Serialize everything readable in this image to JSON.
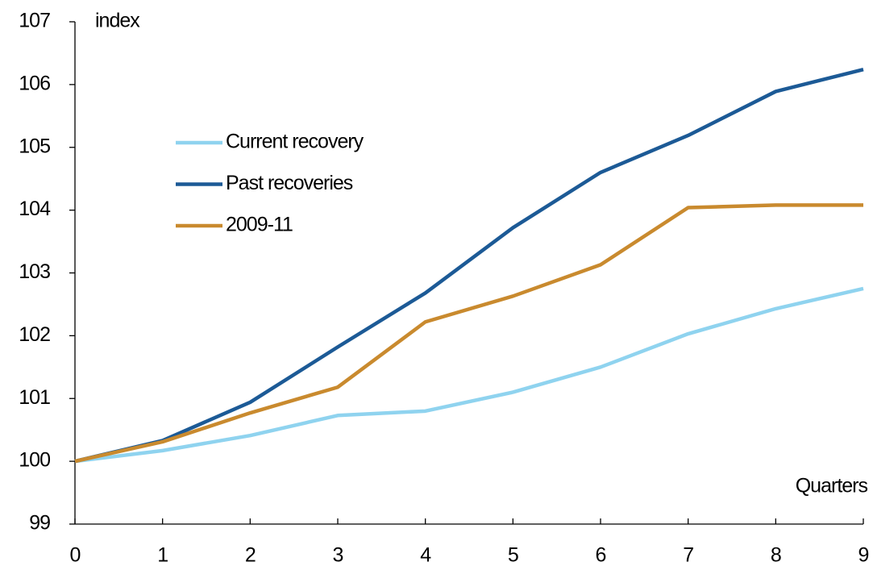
{
  "chart_data": {
    "type": "line",
    "x": [
      0,
      1,
      2,
      3,
      4,
      5,
      6,
      7,
      8,
      9
    ],
    "series": [
      {
        "name": "Current recovery",
        "color": "#8fd3ef",
        "values": [
          100,
          100.17,
          100.41,
          100.73,
          100.8,
          101.1,
          101.5,
          102.03,
          102.43,
          102.75
        ]
      },
      {
        "name": "Past recoveries",
        "color": "#1c5a96",
        "values": [
          100,
          100.33,
          100.94,
          101.82,
          102.68,
          103.72,
          104.6,
          105.19,
          105.89,
          106.24
        ]
      },
      {
        "name": "2009-11",
        "color": "#c98a2e",
        "values": [
          100,
          100.31,
          100.77,
          101.18,
          102.22,
          102.63,
          103.13,
          104.04,
          104.08,
          104.08
        ]
      }
    ],
    "xlim": [
      0,
      9
    ],
    "xticks": [
      0,
      1,
      2,
      3,
      4,
      5,
      6,
      7,
      8,
      9
    ],
    "ylim": [
      99,
      107
    ],
    "yticks": [
      99,
      100,
      101,
      102,
      103,
      104,
      105,
      106,
      107
    ],
    "y_unit_label": "index",
    "x_axis_label": "Quarters",
    "grid": false,
    "legend_position": "upper-left"
  }
}
